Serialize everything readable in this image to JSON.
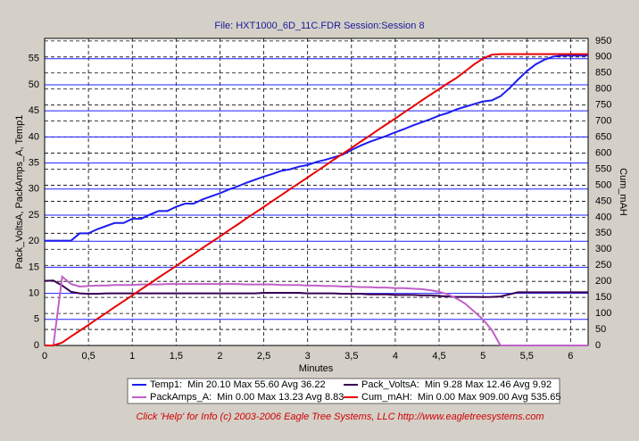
{
  "chart_data": {
    "type": "line",
    "title": "File: HXT1000_6D_11C.FDR   Session:Session 8",
    "xlabel": "Minutes",
    "ylabel": "Pack_VoltsA, PackAmps_A, Temp1",
    "y2label": "Cum_mAH",
    "footer": "Click 'Help' for Info  (c) 2003-2006 Eagle Tree Systems, LLC     http://www.eagletreesystems.com",
    "grid": true,
    "xlim": [
      0,
      6.2
    ],
    "ylim": [
      0,
      58.9
    ],
    "y2lim": [
      0,
      958
    ],
    "xticks": [
      0,
      {
        "value": 0.5,
        "label": "0,5"
      },
      1,
      {
        "value": 1.5,
        "label": "1,5"
      },
      2,
      {
        "value": 2.5,
        "label": "2,5"
      },
      3,
      {
        "value": 3.5,
        "label": "3,5"
      },
      4,
      {
        "value": 4.5,
        "label": "4,5"
      },
      5,
      {
        "value": 5.5,
        "label": "5,5"
      },
      6
    ],
    "yticks": [
      0,
      5,
      10,
      15,
      20,
      25,
      30,
      35,
      40,
      45,
      50,
      55
    ],
    "y2ticks": [
      0,
      50,
      100,
      150,
      200,
      250,
      300,
      350,
      400,
      450,
      500,
      550,
      600,
      650,
      700,
      750,
      800,
      850,
      900,
      950
    ],
    "x": [
      0,
      0.1,
      0.2,
      0.3,
      0.4,
      0.5,
      0.6,
      0.7,
      0.8,
      0.9,
      1,
      1.1,
      1.2,
      1.3,
      1.4,
      1.5,
      1.6,
      1.7,
      1.8,
      1.9,
      2,
      2.1,
      2.2,
      2.3,
      2.4,
      2.5,
      2.6,
      2.7,
      2.8,
      2.9,
      3,
      3.1,
      3.2,
      3.3,
      3.4,
      3.5,
      3.6,
      3.7,
      3.8,
      3.9,
      4,
      4.1,
      4.2,
      4.3,
      4.4,
      4.5,
      4.6,
      4.7,
      4.8,
      4.9,
      5,
      5.1,
      5.2,
      5.3,
      5.4,
      5.5,
      5.6,
      5.7,
      5.8,
      5.9,
      6,
      6.1,
      6.2
    ],
    "series": [
      {
        "name": "Temp1:",
        "stats": "Min 20.10 Max 55.60 Avg 36.22",
        "color": "#1c1cf0",
        "values": [
          20.1,
          20.1,
          20.1,
          20.1,
          21.5,
          21.5,
          22.3,
          22.9,
          23.5,
          23.5,
          24.3,
          24.3,
          25.1,
          25.8,
          25.8,
          26.6,
          27.2,
          27.2,
          28.0,
          28.6,
          29.2,
          29.9,
          30.5,
          31.2,
          31.8,
          32.4,
          32.9,
          33.5,
          33.8,
          34.3,
          34.6,
          35.2,
          35.6,
          36.1,
          36.6,
          37.5,
          38.3,
          39.0,
          39.6,
          40.2,
          40.9,
          41.5,
          42.2,
          42.8,
          43.4,
          44.1,
          44.6,
          45.3,
          45.8,
          46.3,
          46.8,
          47.0,
          47.8,
          49.3,
          51.0,
          52.6,
          53.9,
          54.8,
          55.4,
          55.6,
          55.6,
          55.6,
          55.6
        ]
      },
      {
        "name": "Pack_VoltsA:",
        "stats": "Min 9.28 Max 12.46 Avg 9.92",
        "color": "#3a0050",
        "values": [
          12.4,
          12.46,
          11.5,
          10.3,
          10.0,
          9.9,
          9.9,
          10.0,
          10.0,
          10.0,
          10.0,
          10.0,
          10.0,
          10.0,
          10.0,
          10.0,
          10.0,
          10.0,
          10.0,
          10.0,
          10.0,
          10.0,
          10.0,
          10.0,
          10.0,
          10.1,
          10.1,
          10.1,
          10.1,
          10.1,
          10.0,
          10.0,
          10.0,
          10.0,
          9.9,
          9.9,
          9.9,
          9.8,
          9.8,
          9.8,
          9.7,
          9.7,
          9.7,
          9.6,
          9.6,
          9.5,
          9.4,
          9.3,
          9.3,
          9.3,
          9.28,
          9.3,
          9.4,
          9.8,
          10.2,
          10.2,
          10.2,
          10.2,
          10.2,
          10.2,
          10.2,
          10.2,
          10.2
        ]
      },
      {
        "name": "PackAmps_A:",
        "stats": "Min 0.00 Max 13.23 Avg 8.83",
        "color": "#c060c8",
        "values": [
          0,
          0,
          13.2,
          11.8,
          11.3,
          11.4,
          11.5,
          11.5,
          11.6,
          11.6,
          11.6,
          11.7,
          11.7,
          11.7,
          11.8,
          11.8,
          11.8,
          11.8,
          11.8,
          11.8,
          11.8,
          11.8,
          11.8,
          11.7,
          11.7,
          11.7,
          11.7,
          11.6,
          11.6,
          11.6,
          11.5,
          11.5,
          11.4,
          11.4,
          11.3,
          11.3,
          11.2,
          11.2,
          11.1,
          11.1,
          11.0,
          11.0,
          10.9,
          10.8,
          10.6,
          10.3,
          9.8,
          9.0,
          8.0,
          6.5,
          5.0,
          3.0,
          0,
          0,
          0,
          0,
          0,
          0,
          0,
          0,
          0,
          0,
          0
        ]
      },
      {
        "name": "Cum_mAH:",
        "stats": "Min 0.00 Max 909.00 Avg 535.65",
        "color": "#e80000",
        "axis": "y2",
        "values": [
          0,
          0,
          9,
          28,
          46,
          64,
          83,
          101,
          120,
          138,
          156,
          175,
          193,
          212,
          230,
          248,
          267,
          285,
          304,
          322,
          340,
          359,
          377,
          396,
          414,
          432,
          451,
          469,
          488,
          506,
          524,
          543,
          561,
          580,
          598,
          616,
          635,
          653,
          672,
          690,
          708,
          727,
          745,
          764,
          782,
          800,
          818,
          835,
          856,
          877,
          895,
          907,
          909,
          909,
          909,
          909,
          909,
          909,
          909,
          909,
          909,
          909,
          909
        ]
      }
    ]
  }
}
